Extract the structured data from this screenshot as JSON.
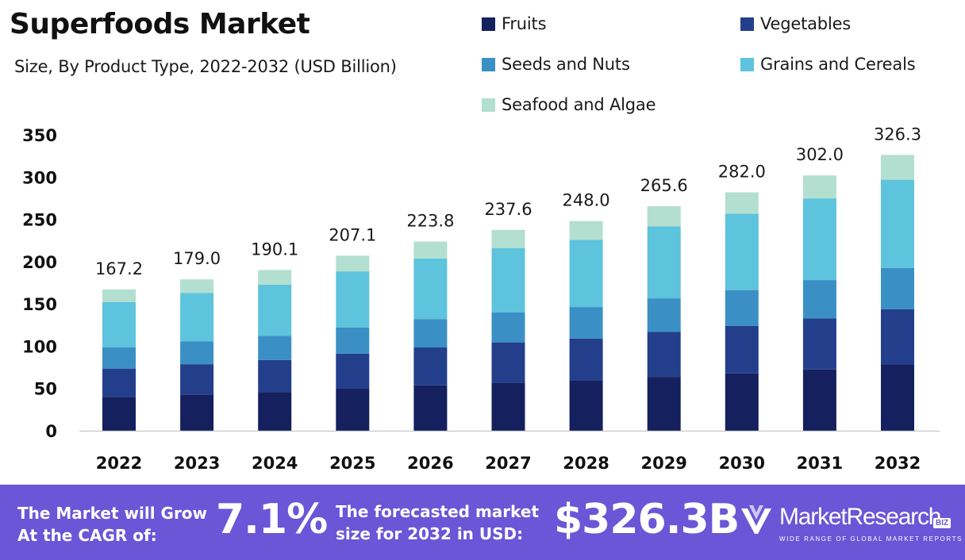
{
  "chart_data": {
    "type": "bar",
    "stacked": true,
    "title": "Superfoods Market",
    "subtitle": "Size, By Product Type, 2022-2032 (USD Billion)",
    "categories": [
      "2022",
      "2023",
      "2024",
      "2025",
      "2026",
      "2027",
      "2028",
      "2029",
      "2030",
      "2031",
      "2032"
    ],
    "series": [
      {
        "name": "Fruits",
        "color": "#15205e",
        "values": [
          40.1,
          42.9,
          45.6,
          49.7,
          53.7,
          57.0,
          59.5,
          63.7,
          67.7,
          72.5,
          78.3
        ]
      },
      {
        "name": "Vegetables",
        "color": "#233f8c",
        "values": [
          33.4,
          35.8,
          38.0,
          41.4,
          44.8,
          47.5,
          49.6,
          53.1,
          56.4,
          60.4,
          65.3
        ]
      },
      {
        "name": "Seeds and Nuts",
        "color": "#3a90c4",
        "values": [
          25.1,
          26.9,
          28.5,
          31.1,
          33.6,
          35.6,
          37.2,
          39.8,
          42.3,
          45.3,
          48.9
        ]
      },
      {
        "name": "Grains and Cereals",
        "color": "#5ec3dc",
        "values": [
          53.5,
          57.3,
          60.8,
          66.3,
          71.6,
          76.0,
          79.4,
          85.0,
          90.2,
          96.6,
          104.4
        ]
      },
      {
        "name": "Seafood and Algae",
        "color": "#b3dfd0",
        "values": [
          15.1,
          16.1,
          17.2,
          18.6,
          20.1,
          21.5,
          22.3,
          24.0,
          25.4,
          27.2,
          29.4
        ]
      }
    ],
    "totals": [
      167.2,
      179.0,
      190.1,
      207.1,
      223.8,
      237.6,
      248.0,
      265.6,
      282.0,
      302.0,
      326.3
    ],
    "total_labels": [
      "167.2",
      "179.0",
      "190.1",
      "207.1",
      "223.8",
      "237.6",
      "248.0",
      "265.6",
      "282.0",
      "302.0",
      "326.3"
    ],
    "y_ticks": [
      0,
      50,
      100,
      150,
      200,
      250,
      300,
      350
    ],
    "ylim": [
      0,
      350
    ],
    "xlabel": "",
    "ylabel": "",
    "grid": false,
    "legend_position": "top-right"
  },
  "footer": {
    "cagr_label": "The Market will Grow\nAt the CAGR of:",
    "cagr_value": "7.1%",
    "forecast_label": "The forecasted market\nsize for 2032 in USD:",
    "forecast_value": "$326.3B",
    "background_color": "#6a56d6"
  },
  "brand": {
    "name": "MarketResearch",
    "badge": "BIZ",
    "tagline": "WIDE RANGE OF GLOBAL MARKET REPORTS",
    "icon": "market-research-logo-icon"
  }
}
